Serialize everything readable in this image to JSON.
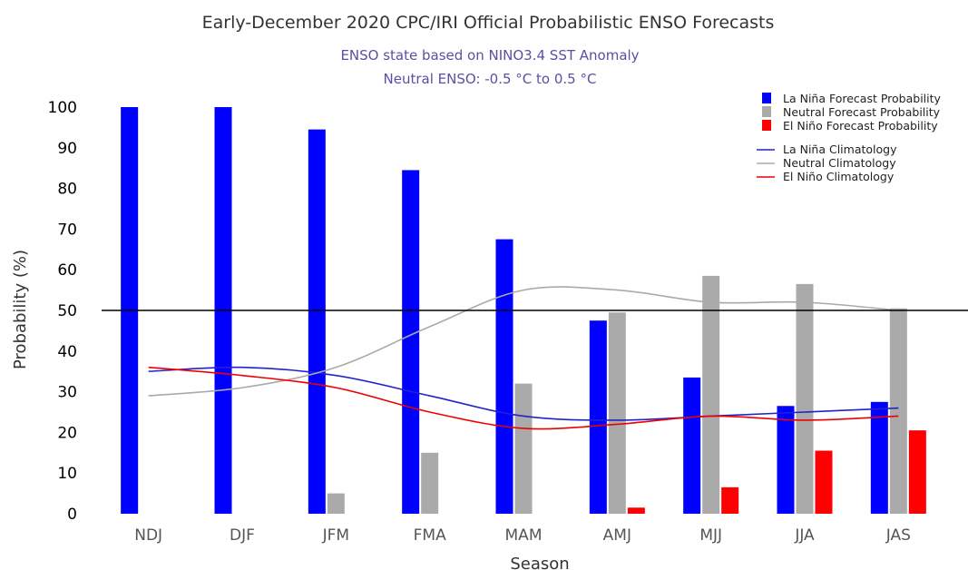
{
  "chart_data": {
    "type": "bar",
    "title": "Early-December 2020 CPC/IRI Official Probabilistic ENSO Forecasts",
    "subtitle_lines": [
      "ENSO state based on NINO3.4 SST Anomaly",
      "Neutral ENSO: -0.5 °C to 0.5 °C"
    ],
    "xlabel": "Season",
    "ylabel": "Probability (%)",
    "ylim": [
      0,
      100
    ],
    "yticks": [
      0,
      10,
      20,
      30,
      40,
      50,
      60,
      70,
      80,
      90,
      100
    ],
    "reference_line": 50,
    "categories": [
      "NDJ",
      "DJF",
      "JFM",
      "FMA",
      "MAM",
      "AMJ",
      "MJJ",
      "JJA",
      "JAS"
    ],
    "series": [
      {
        "name": "La Niña Forecast Probability",
        "color": "#0000ff",
        "values": [
          100,
          100,
          94.5,
          84.5,
          67.5,
          47.5,
          33.5,
          26.5,
          27.5
        ]
      },
      {
        "name": "Neutral Forecast Probability",
        "color": "#aaaaaa",
        "values": [
          0,
          0,
          5,
          15,
          32,
          49.5,
          58.5,
          56.5,
          50.5
        ]
      },
      {
        "name": "El Niño Forecast Probability",
        "color": "#ff0000",
        "values": [
          0,
          0,
          0,
          0,
          0,
          1.5,
          6.5,
          15.5,
          20.5
        ]
      }
    ],
    "climatology": [
      {
        "name": "La Niña Climatology",
        "color": "#2222cc",
        "values": [
          35,
          36,
          34,
          29,
          24,
          23,
          24,
          25,
          26
        ]
      },
      {
        "name": "Neutral Climatology",
        "color": "#aaaaaa",
        "values": [
          29,
          31,
          36,
          46,
          55,
          55,
          52,
          52,
          50
        ]
      },
      {
        "name": "El Niño Climatology",
        "color": "#ee0000",
        "values": [
          36,
          34,
          31,
          25,
          21,
          22,
          24,
          23,
          24
        ]
      }
    ],
    "legend_position": "top-right"
  }
}
